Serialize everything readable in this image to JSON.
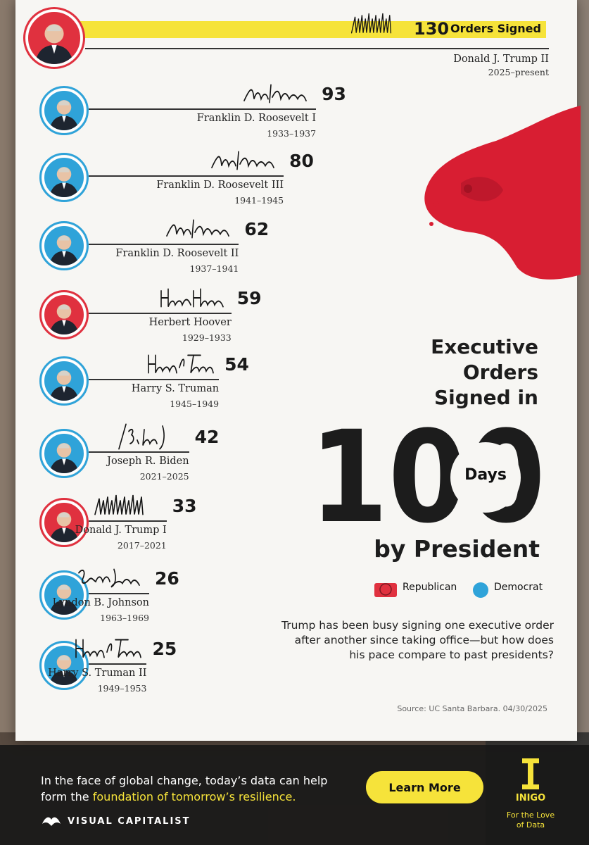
{
  "title": {
    "line1": "Executive",
    "line2": "Orders",
    "line3": "Signed in",
    "big_number": "100",
    "days_label": "Days",
    "line4": "by President"
  },
  "top_label": "Orders Signed",
  "legend": {
    "republican": "Republican",
    "democrat": "Democrat"
  },
  "colors": {
    "republican": "#e0313f",
    "democrat": "#2fa3d9",
    "highlight": "#f6e33a",
    "blood": "#d81e32"
  },
  "description": "Trump has been busy signing one executive order after another since taking office—but how does his pace compare to past presidents?",
  "source": "Source: UC Santa Barbara. 04/30/2025",
  "footer": {
    "text_plain": "In the face of global change, today’s data can help form the",
    "text_highlight": "foundation of tomorrow’s resilience.",
    "button": "Learn More",
    "brand_left": "VISUAL CAPITALIST",
    "brand_right": "INIGO",
    "brand_right_tagline_1": "For the Love",
    "brand_right_tagline_2": "of Data"
  },
  "chart_data": {
    "type": "bar",
    "title": "Executive Orders Signed in 100 Days by President",
    "xlabel": "",
    "ylabel": "Executive orders signed",
    "categories": [
      "Donald J. Trump II",
      "Franklin D. Roosevelt I",
      "Franklin D. Roosevelt III",
      "Franklin D. Roosevelt II",
      "Herbert Hoover",
      "Harry S. Truman",
      "Joseph R. Biden",
      "Donald J. Trump I",
      "Lyndon B. Johnson",
      "Harry S. Truman II"
    ],
    "series": [
      {
        "name": "Executive orders signed in first 100 days",
        "values": [
          130,
          93,
          80,
          62,
          59,
          54,
          42,
          33,
          26,
          25
        ]
      }
    ],
    "rows": [
      {
        "name": "Donald J. Trump II",
        "years": "2025–present",
        "value": 130,
        "party": "Republican",
        "signature": "trump-signature"
      },
      {
        "name": "Franklin D. Roosevelt I",
        "years": "1933–1937",
        "value": 93,
        "party": "Democrat",
        "signature": "roosevelt-signature"
      },
      {
        "name": "Franklin D. Roosevelt III",
        "years": "1941–1945",
        "value": 80,
        "party": "Democrat",
        "signature": "roosevelt-signature"
      },
      {
        "name": "Franklin D. Roosevelt II",
        "years": "1937–1941",
        "value": 62,
        "party": "Democrat",
        "signature": "roosevelt-signature"
      },
      {
        "name": "Herbert Hoover",
        "years": "1929–1933",
        "value": 59,
        "party": "Republican",
        "signature": "hoover-signature"
      },
      {
        "name": "Harry S. Truman",
        "years": "1945–1949",
        "value": 54,
        "party": "Democrat",
        "signature": "truman-signature"
      },
      {
        "name": "Joseph R. Biden",
        "years": "2021–2025",
        "value": 42,
        "party": "Democrat",
        "signature": "biden-signature"
      },
      {
        "name": "Donald J. Trump I",
        "years": "2017–2021",
        "value": 33,
        "party": "Republican",
        "signature": "trump-signature"
      },
      {
        "name": "Lyndon B. Johnson",
        "years": "1963–1969",
        "value": 26,
        "party": "Democrat",
        "signature": "johnson-signature"
      },
      {
        "name": "Harry S. Truman II",
        "years": "1949–1953",
        "value": 25,
        "party": "Democrat",
        "signature": "truman-signature"
      }
    ],
    "ylim": [
      0,
      130
    ]
  }
}
